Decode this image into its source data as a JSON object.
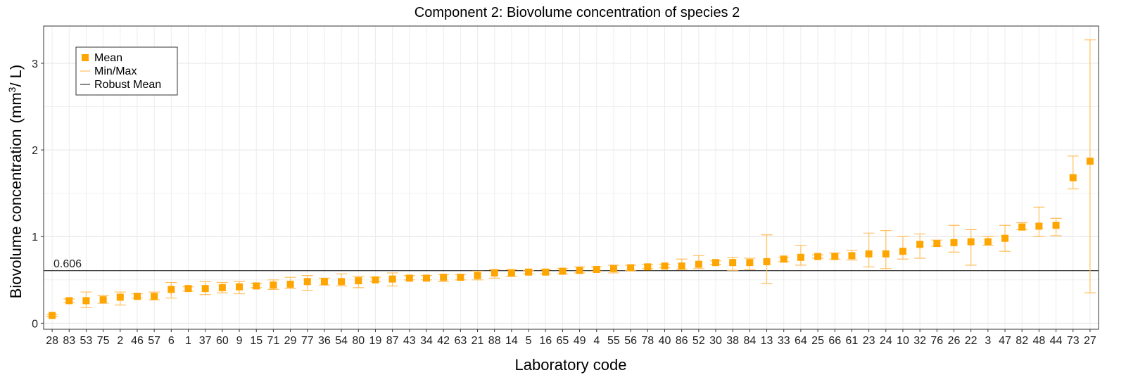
{
  "chart_data": {
    "type": "scatter",
    "title": "Component 2: Biovolume concentration of species 2",
    "xlabel": "Laboratory code",
    "ylabel": "Biovolume concentration",
    "ylabel_unit_prefix": "(mm",
    "ylabel_unit_sup": "3",
    "ylabel_unit_suffix": "/ L)",
    "ylim": [
      -0.07,
      3.43
    ],
    "yticks": [
      "0",
      "1",
      "2",
      "3"
    ],
    "grid": true,
    "legend_position": "top-left",
    "legend": [
      "Mean",
      "Min/Max",
      "Robust Mean"
    ],
    "robust_mean": 0.606,
    "robust_mean_label": "0.606",
    "colors": {
      "mean": "#FFA500",
      "minmax": "#FFBE5C",
      "robust": "#000000"
    },
    "categories": [
      "28",
      "83",
      "53",
      "75",
      "2",
      "46",
      "57",
      "6",
      "1",
      "37",
      "60",
      "9",
      "15",
      "71",
      "29",
      "77",
      "36",
      "54",
      "80",
      "19",
      "87",
      "43",
      "34",
      "42",
      "63",
      "21",
      "88",
      "14",
      "5",
      "16",
      "65",
      "49",
      "4",
      "55",
      "56",
      "78",
      "40",
      "86",
      "52",
      "30",
      "38",
      "84",
      "13",
      "33",
      "64",
      "25",
      "66",
      "61",
      "23",
      "24",
      "10",
      "32",
      "76",
      "26",
      "22",
      "3",
      "47",
      "82",
      "48",
      "44",
      "73",
      "27"
    ],
    "series": [
      {
        "name": "Mean",
        "values": [
          0.09,
          0.26,
          0.26,
          0.27,
          0.3,
          0.31,
          0.31,
          0.39,
          0.4,
          0.4,
          0.41,
          0.42,
          0.43,
          0.44,
          0.45,
          0.48,
          0.48,
          0.48,
          0.49,
          0.5,
          0.51,
          0.52,
          0.52,
          0.53,
          0.53,
          0.55,
          0.58,
          0.58,
          0.59,
          0.59,
          0.6,
          0.61,
          0.62,
          0.63,
          0.64,
          0.65,
          0.66,
          0.66,
          0.68,
          0.7,
          0.7,
          0.7,
          0.71,
          0.74,
          0.76,
          0.77,
          0.77,
          0.78,
          0.8,
          0.8,
          0.83,
          0.91,
          0.92,
          0.93,
          0.94,
          0.94,
          0.98,
          1.11,
          1.12,
          1.13,
          1.68,
          1.87
        ]
      },
      {
        "name": "Min",
        "values": [
          0.08,
          0.24,
          0.18,
          0.23,
          0.21,
          0.29,
          0.27,
          0.29,
          0.37,
          0.33,
          0.35,
          0.34,
          0.41,
          0.39,
          0.4,
          0.38,
          0.44,
          0.43,
          0.41,
          0.48,
          0.43,
          0.5,
          0.5,
          0.48,
          0.5,
          0.5,
          0.52,
          0.54,
          0.57,
          0.57,
          0.57,
          0.58,
          0.6,
          0.58,
          0.61,
          0.63,
          0.64,
          0.62,
          0.63,
          0.68,
          0.61,
          0.62,
          0.46,
          0.71,
          0.67,
          0.75,
          0.74,
          0.73,
          0.65,
          0.63,
          0.74,
          0.75,
          0.89,
          0.82,
          0.67,
          0.9,
          0.83,
          1.08,
          1.0,
          1.01,
          1.55,
          0.35
        ]
      },
      {
        "name": "Max",
        "values": [
          0.1,
          0.28,
          0.36,
          0.32,
          0.36,
          0.34,
          0.36,
          0.47,
          0.42,
          0.48,
          0.47,
          0.48,
          0.46,
          0.5,
          0.53,
          0.55,
          0.52,
          0.57,
          0.54,
          0.53,
          0.58,
          0.55,
          0.55,
          0.56,
          0.56,
          0.6,
          0.62,
          0.62,
          0.61,
          0.62,
          0.63,
          0.65,
          0.65,
          0.67,
          0.67,
          0.68,
          0.68,
          0.74,
          0.78,
          0.72,
          0.76,
          0.75,
          1.02,
          0.76,
          0.9,
          0.79,
          0.81,
          0.84,
          1.04,
          1.07,
          1.0,
          1.03,
          0.96,
          1.13,
          1.08,
          1.0,
          1.13,
          1.16,
          1.34,
          1.21,
          1.93,
          3.27
        ]
      }
    ]
  }
}
